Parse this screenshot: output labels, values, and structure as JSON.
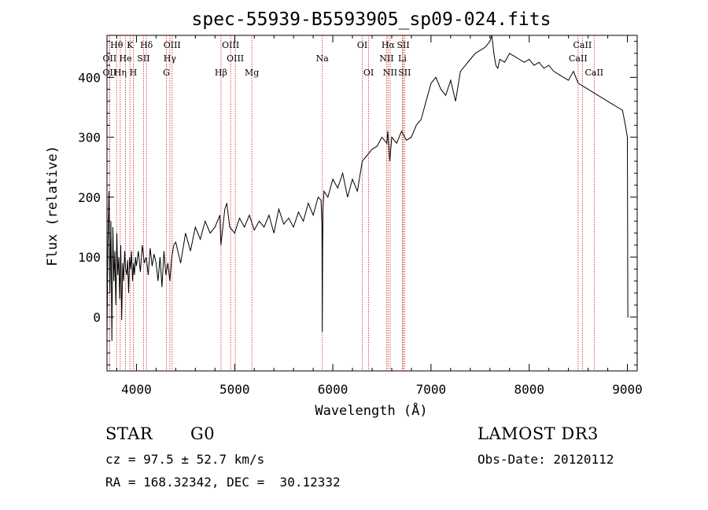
{
  "chart_data": {
    "type": "line",
    "title": "spec-55939-B5593905_sp09-024.fits",
    "xlabel": "Wavelength (Å)",
    "ylabel": "Flux (relative)",
    "xlim": [
      3700,
      9100
    ],
    "ylim": [
      -90,
      470
    ],
    "xticks": [
      4000,
      5000,
      6000,
      7000,
      8000,
      9000
    ],
    "yticks": [
      0,
      100,
      200,
      300,
      400
    ],
    "series": [
      {
        "name": "spectrum",
        "x": [
          3700,
          3710,
          3720,
          3730,
          3740,
          3750,
          3760,
          3770,
          3780,
          3790,
          3800,
          3810,
          3820,
          3830,
          3840,
          3850,
          3860,
          3870,
          3880,
          3890,
          3900,
          3910,
          3920,
          3930,
          3940,
          3950,
          3960,
          3970,
          3980,
          3990,
          4000,
          4020,
          4040,
          4060,
          4080,
          4100,
          4120,
          4140,
          4160,
          4180,
          4200,
          4220,
          4240,
          4260,
          4280,
          4300,
          4320,
          4340,
          4360,
          4380,
          4400,
          4450,
          4500,
          4550,
          4600,
          4650,
          4700,
          4750,
          4800,
          4850,
          4860,
          4900,
          4920,
          4950,
          5000,
          5050,
          5100,
          5150,
          5200,
          5250,
          5300,
          5350,
          5400,
          5450,
          5500,
          5550,
          5600,
          5650,
          5700,
          5750,
          5800,
          5850,
          5880,
          5890,
          5893,
          5896,
          5900,
          5910,
          5950,
          6000,
          6050,
          6100,
          6150,
          6200,
          6250,
          6300,
          6350,
          6400,
          6450,
          6500,
          6550,
          6560,
          6580,
          6600,
          6650,
          6700,
          6750,
          6800,
          6850,
          6900,
          6950,
          7000,
          7050,
          7100,
          7150,
          7200,
          7250,
          7300,
          7350,
          7400,
          7450,
          7500,
          7550,
          7600,
          7620,
          7640,
          7660,
          7680,
          7700,
          7750,
          7800,
          7850,
          7900,
          7950,
          8000,
          8050,
          8100,
          8150,
          8200,
          8250,
          8300,
          8350,
          8400,
          8450,
          8500,
          8550,
          8600,
          8650,
          8700,
          8750,
          8800,
          8850,
          8900,
          8950,
          8980,
          9000,
          9005,
          9010
        ],
        "values": [
          -30,
          120,
          210,
          40,
          160,
          -40,
          150,
          60,
          110,
          20,
          140,
          70,
          100,
          30,
          120,
          -5,
          90,
          60,
          110,
          80,
          70,
          95,
          40,
          100,
          80,
          110,
          60,
          90,
          70,
          100,
          85,
          110,
          75,
          120,
          90,
          100,
          70,
          115,
          85,
          105,
          90,
          60,
          100,
          50,
          110,
          70,
          90,
          60,
          100,
          120,
          125,
          90,
          140,
          110,
          150,
          130,
          160,
          140,
          150,
          170,
          120,
          180,
          190,
          150,
          140,
          165,
          150,
          170,
          145,
          160,
          150,
          170,
          140,
          180,
          155,
          165,
          150,
          175,
          160,
          190,
          170,
          200,
          195,
          150,
          -25,
          110,
          180,
          210,
          200,
          230,
          215,
          240,
          200,
          230,
          210,
          260,
          270,
          280,
          285,
          300,
          290,
          310,
          260,
          300,
          290,
          310,
          295,
          300,
          320,
          330,
          360,
          390,
          400,
          380,
          370,
          395,
          360,
          410,
          420,
          430,
          440,
          445,
          450,
          460,
          470,
          440,
          420,
          415,
          430,
          425,
          440,
          435,
          430,
          425,
          430,
          420,
          425,
          415,
          420,
          410,
          405,
          400,
          395,
          410,
          390,
          385,
          380,
          375,
          370,
          365,
          360,
          355,
          350,
          345,
          320,
          300,
          0,
          0
        ]
      }
    ],
    "lines": [
      {
        "label": "Hθ",
        "wave": 3798,
        "row": 1
      },
      {
        "label": "OII",
        "wave": 3727,
        "row": 2
      },
      {
        "label": "OII",
        "wave": 3727,
        "row": 3
      },
      {
        "label": "He",
        "wave": 3889,
        "row": 2
      },
      {
        "label": "Hη",
        "wave": 3835,
        "row": 3
      },
      {
        "label": "K",
        "wave": 3934,
        "row": 1
      },
      {
        "label": "SII",
        "wave": 4072,
        "row": 2
      },
      {
        "label": "H",
        "wave": 3968,
        "row": 3
      },
      {
        "label": "Hδ",
        "wave": 4102,
        "row": 1
      },
      {
        "label": "OIII",
        "wave": 4363,
        "row": 1
      },
      {
        "label": "Hγ",
        "wave": 4340,
        "row": 2
      },
      {
        "label": "G",
        "wave": 4305,
        "row": 3
      },
      {
        "label": "Hβ",
        "wave": 4861,
        "row": 3
      },
      {
        "label": "OIII",
        "wave": 4959,
        "row": 1
      },
      {
        "label": "OIII",
        "wave": 5007,
        "row": 2
      },
      {
        "label": "Mg",
        "wave": 5175,
        "row": 3
      },
      {
        "label": "Na",
        "wave": 5893,
        "row": 2
      },
      {
        "label": "OI",
        "wave": 6300,
        "row": 1
      },
      {
        "label": "OI",
        "wave": 6364,
        "row": 3
      },
      {
        "label": "Hα",
        "wave": 6563,
        "row": 1
      },
      {
        "label": "NII",
        "wave": 6548,
        "row": 2
      },
      {
        "label": "NII",
        "wave": 6584,
        "row": 3
      },
      {
        "label": "SII",
        "wave": 6717,
        "row": 1
      },
      {
        "label": "Li",
        "wave": 6708,
        "row": 2
      },
      {
        "label": "SII",
        "wave": 6731,
        "row": 3
      },
      {
        "label": "CaII",
        "wave": 8542,
        "row": 1
      },
      {
        "label": "CaII",
        "wave": 8498,
        "row": 2
      },
      {
        "label": "CaII",
        "wave": 8662,
        "row": 3
      }
    ]
  },
  "info": {
    "object_class": "STAR",
    "subclass": "G0",
    "survey": "LAMOST DR3",
    "cz": "cz = 97.5 ± 52.7 km/s",
    "obs_date": "Obs-Date: 20120112",
    "coords": "RA = 168.32342, DEC =  30.12332"
  },
  "colors": {
    "line_marker": "#cc2222",
    "spectrum": "#000000"
  }
}
